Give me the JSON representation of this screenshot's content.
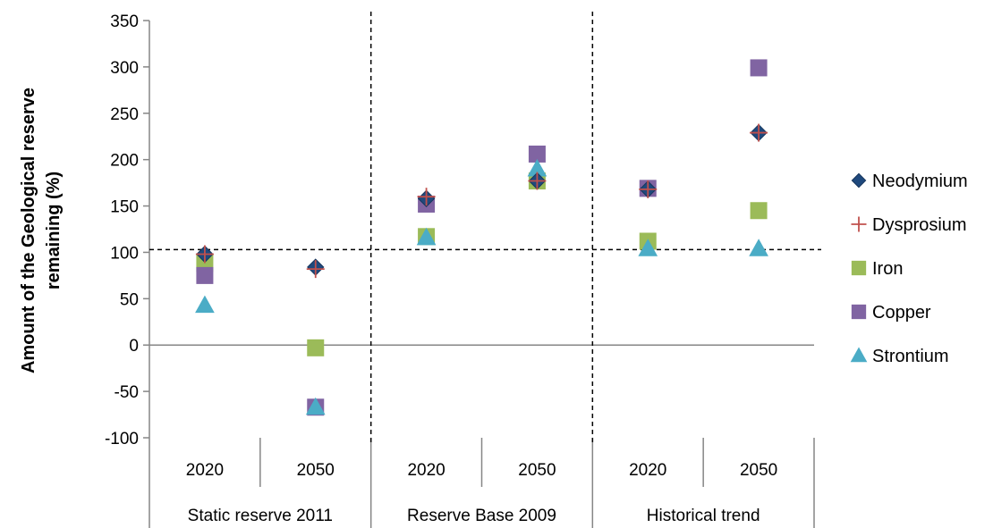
{
  "chart_data": {
    "type": "scatter",
    "title": "",
    "ylabel_lines": [
      "Amount of the Geological reserve",
      "remaining (%)"
    ],
    "ylim": [
      -100,
      350
    ],
    "yticks": [
      "-100",
      "-50",
      "0",
      "50",
      "100",
      "150",
      "200",
      "250",
      "300",
      "350"
    ],
    "grid": false,
    "legend_position": "right",
    "categories": [
      "2020",
      "2050",
      "2020",
      "2050",
      "2020",
      "2050"
    ],
    "groups": [
      "Static reserve 2011",
      "Reserve Base 2009",
      "Historical trend"
    ],
    "reference_line_y": 103,
    "series": [
      {
        "name": "Neodymium",
        "marker": "diamond",
        "color": "#1f497d",
        "values": [
          98,
          84,
          158,
          177,
          168,
          229
        ]
      },
      {
        "name": "Dysprosium",
        "marker": "plus",
        "color": "#c0504d",
        "values": [
          98,
          82,
          160,
          177,
          168,
          229
        ]
      },
      {
        "name": "Iron",
        "marker": "square",
        "color": "#9bbb59",
        "values": [
          88,
          -3,
          117,
          177,
          112,
          145
        ]
      },
      {
        "name": "Copper",
        "marker": "square",
        "color": "#8064a2",
        "values": [
          75,
          -67,
          152,
          206,
          169,
          299
        ]
      },
      {
        "name": "Strontium",
        "marker": "triangle",
        "color": "#4bacc6",
        "values": [
          43,
          -67,
          116,
          190,
          104,
          104
        ]
      }
    ]
  }
}
